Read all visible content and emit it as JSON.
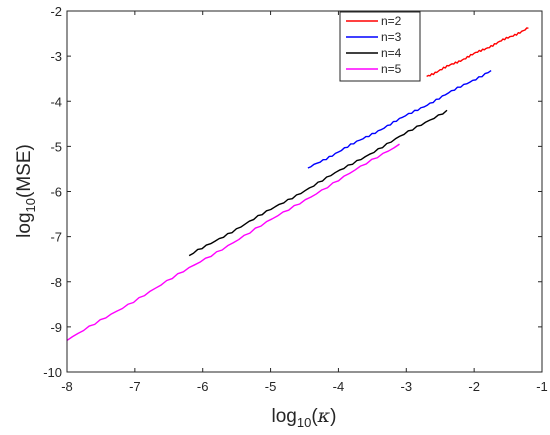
{
  "chart_data": {
    "type": "line",
    "xlabel": {
      "base": "log",
      "sub": "10",
      "arg": "κ"
    },
    "ylabel": {
      "base": "log",
      "sub": "10",
      "arg": "MSE"
    },
    "xlim": [
      -8,
      -1
    ],
    "ylim": [
      -10,
      -2
    ],
    "xticks": [
      "-8",
      "-7",
      "-6",
      "-5",
      "-4",
      "-3",
      "-2",
      "-1"
    ],
    "yticks": [
      "-10",
      "-9",
      "-8",
      "-7",
      "-6",
      "-5",
      "-4",
      "-3",
      "-2"
    ],
    "legend_position": "top-right",
    "series": [
      {
        "name": "n=2",
        "color": "#ff0000",
        "x": [
          -2.7,
          -1.2
        ],
        "y": [
          -3.45,
          -2.38
        ]
      },
      {
        "name": "n=3",
        "color": "#0000ff",
        "x": [
          -4.45,
          -1.75
        ],
        "y": [
          -5.48,
          -3.32
        ]
      },
      {
        "name": "n=4",
        "color": "#000000",
        "x": [
          -6.2,
          -2.4
        ],
        "y": [
          -7.42,
          -4.2
        ]
      },
      {
        "name": "n=5",
        "color": "#ff00ff",
        "x": [
          -8.0,
          -3.1
        ],
        "y": [
          -9.3,
          -4.95
        ]
      }
    ]
  }
}
